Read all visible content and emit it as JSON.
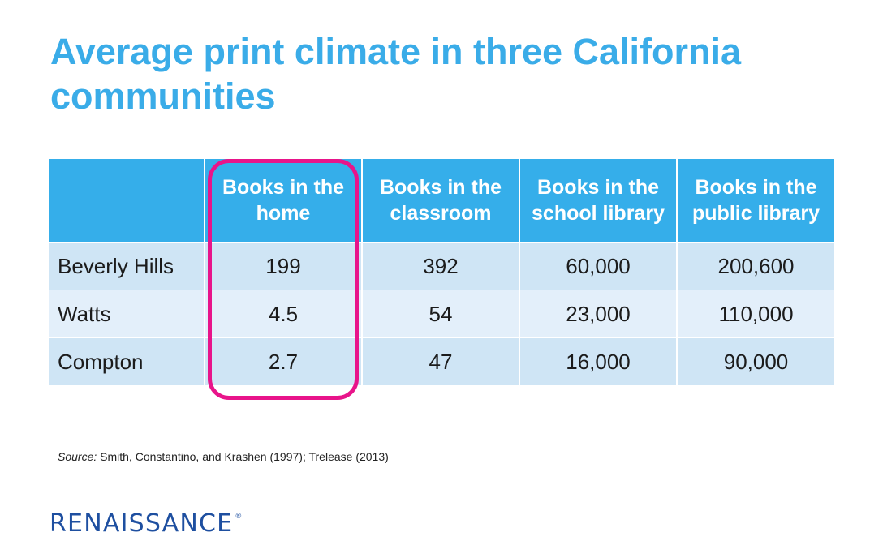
{
  "title": "Average print climate in three California communities",
  "chart_data": {
    "type": "table",
    "title": "Average print climate in three California communities",
    "columns": [
      "",
      "Books in the home",
      "Books in the classroom",
      "Books in the school library",
      "Books in the public library"
    ],
    "rows": [
      {
        "name": "Beverly Hills",
        "values": [
          "199",
          "392",
          "60,000",
          "200,600"
        ]
      },
      {
        "name": "Watts",
        "values": [
          "4.5",
          "54",
          "23,000",
          "110,000"
        ]
      },
      {
        "name": "Compton",
        "values": [
          "2.7",
          "47",
          "16,000",
          "90,000"
        ]
      }
    ],
    "highlighted_column": "Books in the home"
  },
  "source": {
    "label": "Source:",
    "text": "Smith, Constantino, and Krashen (1997); Trelease (2013)"
  },
  "logo": {
    "text": "RENAISSANCE",
    "mark": "®"
  },
  "colors": {
    "title": "#3aace8",
    "header": "#35aeea",
    "row_dark": "#cfe5f5",
    "row_light": "#e3effa",
    "highlight": "#e8148a",
    "logo": "#1e4fa0"
  }
}
